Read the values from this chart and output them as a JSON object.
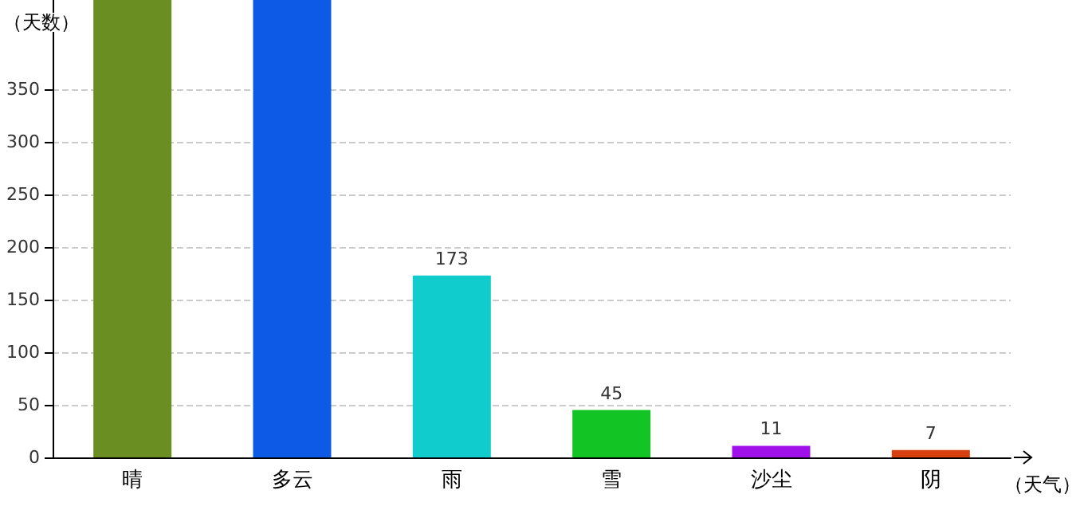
{
  "chart_data": {
    "type": "bar",
    "xlabel": "（天气）",
    "ylabel": "（天数）",
    "categories": [
      "晴",
      "多云",
      "雨",
      "雪",
      "沙尘",
      "阴"
    ],
    "values": [
      435,
      435,
      173,
      45,
      11,
      7
    ],
    "value_labels": [
      null,
      null,
      "173",
      "45",
      "11",
      "7"
    ],
    "colors": [
      "#6b8e23",
      "#0d5ae6",
      "#11cccc",
      "#12c424",
      "#a010e8",
      "#d84010"
    ],
    "ylim": [
      0,
      435
    ],
    "yticks": [
      0,
      50,
      100,
      150,
      200,
      250,
      300,
      350
    ],
    "grid": "y"
  }
}
